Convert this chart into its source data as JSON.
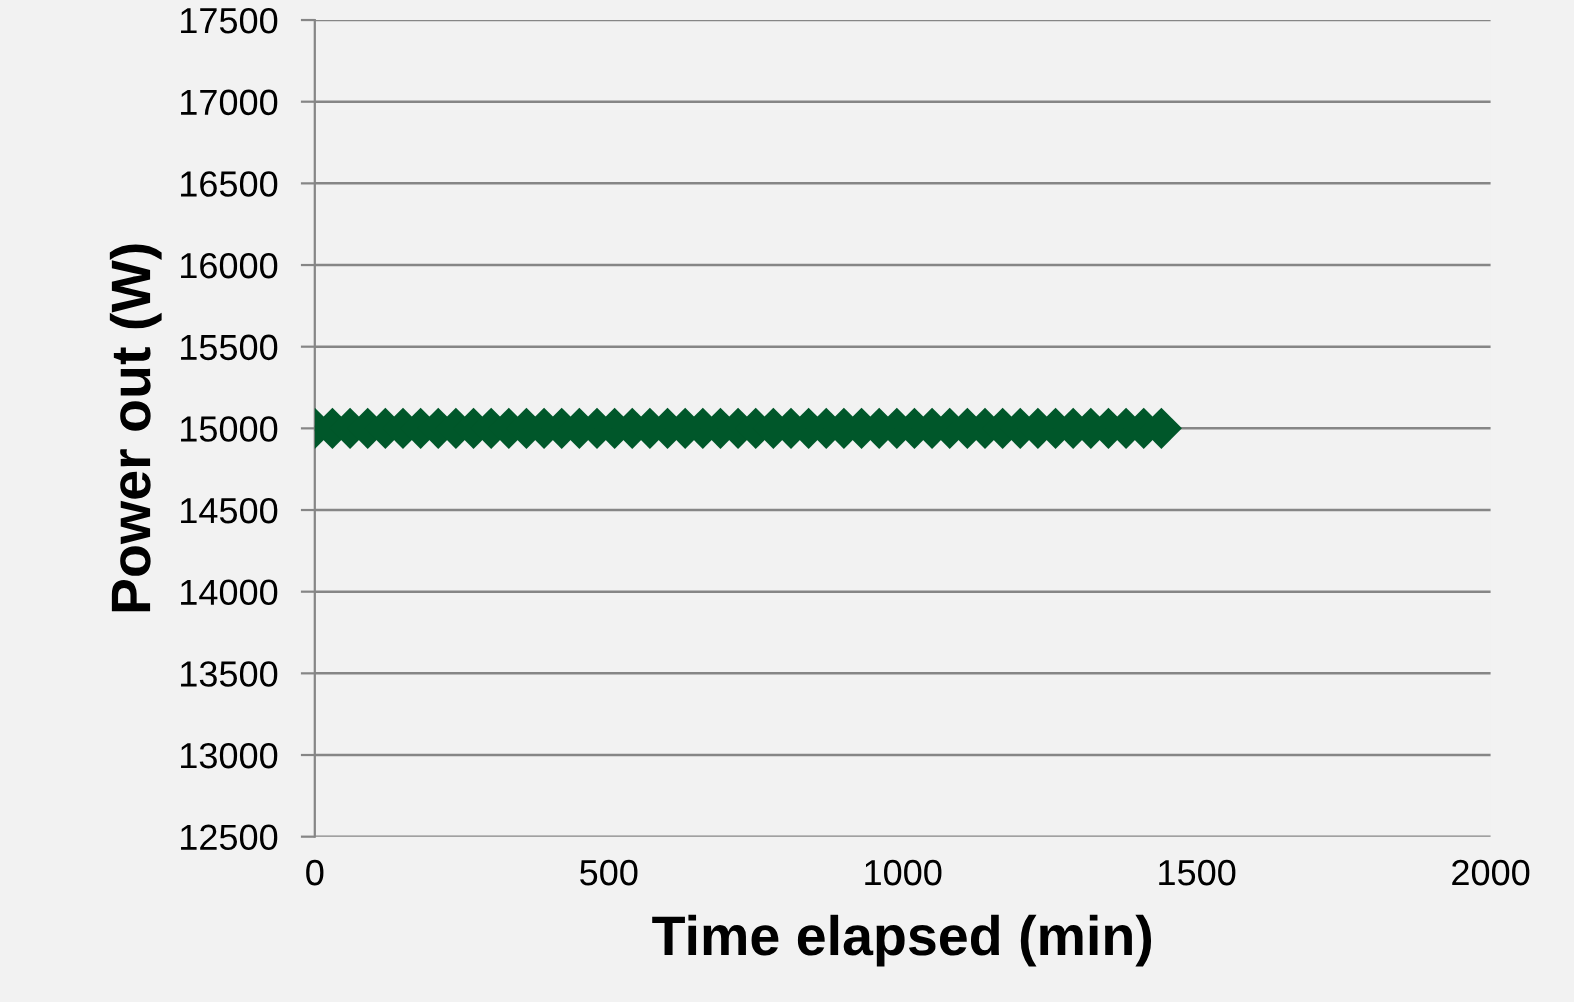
{
  "chart_data": {
    "type": "scatter",
    "xlabel": "Time elapsed (min)",
    "ylabel": "Power out (W)",
    "x": [
      0,
      30,
      60,
      90,
      120,
      150,
      180,
      210,
      240,
      270,
      300,
      330,
      360,
      390,
      420,
      450,
      480,
      510,
      540,
      570,
      600,
      630,
      660,
      690,
      720,
      750,
      780,
      810,
      840,
      870,
      900,
      930,
      960,
      990,
      1020,
      1050,
      1080,
      1110,
      1140,
      1170,
      1200,
      1230,
      1260,
      1290,
      1320,
      1350,
      1380,
      1410,
      1440
    ],
    "series": [
      {
        "color": "#00572a",
        "values": [
          15000,
          15000,
          15000,
          15000,
          15000,
          15000,
          15000,
          15000,
          15000,
          15000,
          15000,
          15000,
          15000,
          15000,
          15000,
          15000,
          15000,
          15000,
          15000,
          15000,
          15000,
          15000,
          15000,
          15000,
          15000,
          15000,
          15000,
          15000,
          15000,
          15000,
          15000,
          15000,
          15000,
          15000,
          15000,
          15000,
          15000,
          15000,
          15000,
          15000,
          15000,
          15000,
          15000,
          15000,
          15000,
          15000,
          15000,
          15000,
          15000
        ]
      }
    ],
    "xlim": [
      0,
      2000
    ],
    "xticks": [
      0,
      500,
      1000,
      1500,
      2000
    ],
    "ylim": [
      12500,
      17500
    ],
    "yticks": [
      12500,
      13000,
      13500,
      14000,
      14500,
      15000,
      15500,
      16000,
      16500,
      17000,
      17500
    ],
    "grid": "y",
    "marker": "diamond",
    "legend": false
  }
}
